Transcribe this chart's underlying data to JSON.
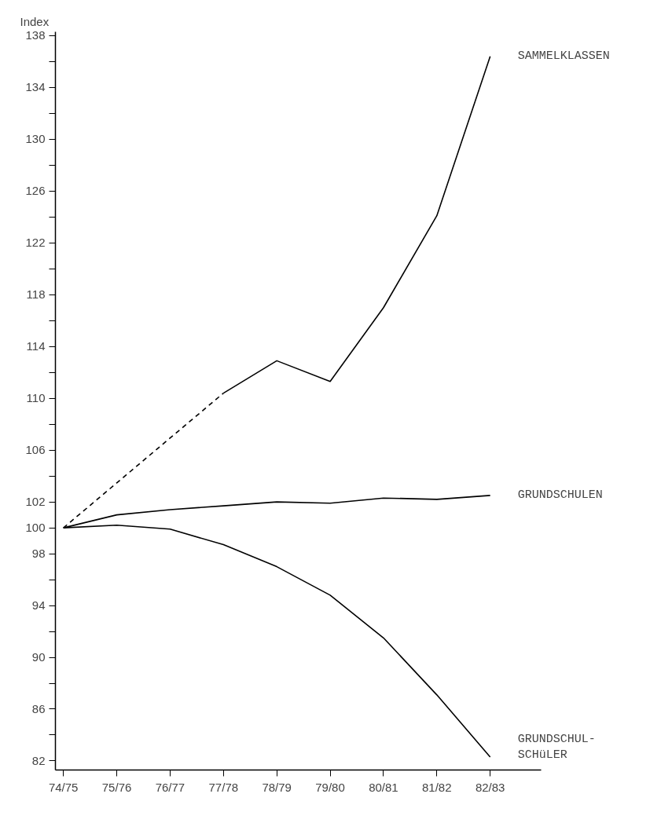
{
  "chart_data": {
    "type": "line",
    "ylabel": "Index",
    "categories": [
      "74/75",
      "75/76",
      "76/77",
      "77/78",
      "78/79",
      "79/80",
      "80/81",
      "81/82",
      "82/83"
    ],
    "series": [
      {
        "name": "SAMMELKLASSEN",
        "color": "#000000",
        "values": [
          null,
          null,
          null,
          110.4,
          112.9,
          111.3,
          117.0,
          124.1,
          136.4
        ]
      },
      {
        "color": "#000000",
        "line_style": "dashed",
        "x": [
          "74/75",
          "77/78"
        ],
        "values": [
          100,
          110.4
        ]
      },
      {
        "name": "GRUNDSCHULEN",
        "color": "#000000",
        "values": [
          100,
          101.0,
          101.4,
          101.7,
          102.0,
          101.9,
          102.3,
          102.2,
          102.5
        ]
      },
      {
        "name": "GRUNDSCHUL-\nSCHüLER",
        "color": "#000000",
        "values": [
          100,
          100.2,
          99.9,
          98.7,
          97.0,
          94.8,
          91.5,
          87.1,
          82.3
        ]
      }
    ],
    "ylim": [
      81.3,
      138.3
    ],
    "yticks": [
      82,
      {
        "value": 84,
        "label": null
      },
      86,
      {
        "value": 88,
        "label": null
      },
      90,
      {
        "value": 92,
        "label": null
      },
      94,
      {
        "value": 96,
        "label": null
      },
      98,
      100,
      102,
      {
        "value": 104,
        "label": null
      },
      106,
      {
        "value": 108,
        "label": null
      },
      110,
      {
        "value": 112,
        "label": null
      },
      114,
      {
        "value": 116,
        "label": null
      },
      118,
      {
        "value": 120,
        "label": null
      },
      122,
      {
        "value": 124,
        "label": null
      },
      126,
      {
        "value": 128,
        "label": null
      },
      130,
      {
        "value": 132,
        "label": null
      },
      134,
      {
        "value": 136,
        "label": null
      },
      138
    ],
    "grid": false,
    "legend": false,
    "line_style": "solid",
    "marker": "none"
  }
}
